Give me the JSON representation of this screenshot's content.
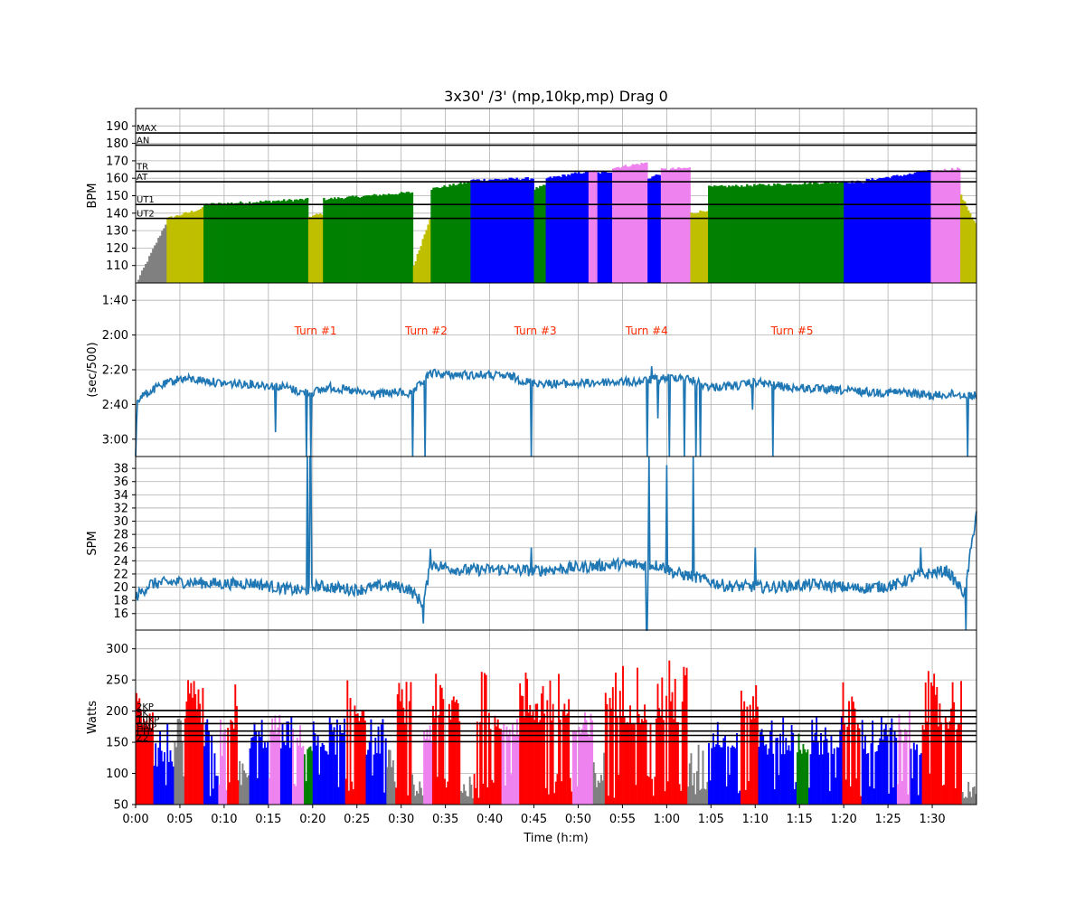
{
  "chart_data": {
    "type": "multi-panel",
    "title": "3x30' /3' (mp,10kp,mp) Drag 0",
    "xlabel": "Time (h:m)",
    "x_range_seconds": [
      0,
      5700
    ],
    "x_ticks": [
      {
        "t": 0,
        "label": "0:00"
      },
      {
        "t": 300,
        "label": "0:05"
      },
      {
        "t": 600,
        "label": "0:10"
      },
      {
        "t": 900,
        "label": "0:15"
      },
      {
        "t": 1200,
        "label": "0:20"
      },
      {
        "t": 1500,
        "label": "0:25"
      },
      {
        "t": 1800,
        "label": "0:30"
      },
      {
        "t": 2100,
        "label": "0:35"
      },
      {
        "t": 2400,
        "label": "0:40"
      },
      {
        "t": 2700,
        "label": "0:45"
      },
      {
        "t": 3000,
        "label": "0:50"
      },
      {
        "t": 3300,
        "label": "0:55"
      },
      {
        "t": 3600,
        "label": "1:00"
      },
      {
        "t": 3900,
        "label": "1:05"
      },
      {
        "t": 4200,
        "label": "1:10"
      },
      {
        "t": 4500,
        "label": "1:15"
      },
      {
        "t": 4800,
        "label": "1:20"
      },
      {
        "t": 5100,
        "label": "1:25"
      },
      {
        "t": 5400,
        "label": "1:30"
      }
    ],
    "colors": {
      "gray": "#808080",
      "yellow": "#bfbf00",
      "green": "#008000",
      "blue": "#0000ff",
      "violet": "#ee82ee",
      "red": "#ff0000",
      "line": "#1f77b4",
      "turn": "#ff2a00"
    },
    "hr_panel": {
      "ylabel": "BPM",
      "ylim": [
        100,
        200
      ],
      "yticks": [
        110,
        120,
        130,
        140,
        150,
        160,
        170,
        180,
        190
      ],
      "zone_lines": [
        {
          "name": "MAX",
          "value": 186
        },
        {
          "name": "AN",
          "value": 179
        },
        {
          "name": "TR",
          "value": 164
        },
        {
          "name": "AT",
          "value": 158
        },
        {
          "name": "UT1",
          "value": 145
        },
        {
          "name": "UT2",
          "value": 137
        }
      ],
      "segments": [
        {
          "t0": 0,
          "t1": 210,
          "start": 100,
          "end": 136,
          "color": "gray"
        },
        {
          "t0": 210,
          "t1": 460,
          "start": 137,
          "end": 143,
          "color": "yellow"
        },
        {
          "t0": 460,
          "t1": 1170,
          "start": 145,
          "end": 148,
          "color": "green"
        },
        {
          "t0": 1170,
          "t1": 1270,
          "start": 138,
          "end": 140,
          "color": "yellow"
        },
        {
          "t0": 1270,
          "t1": 1880,
          "start": 148,
          "end": 152,
          "color": "green"
        },
        {
          "t0": 1880,
          "t1": 2000,
          "start": 110,
          "end": 140,
          "color": "yellow"
        },
        {
          "t0": 2000,
          "t1": 2270,
          "start": 154,
          "end": 158,
          "color": "green"
        },
        {
          "t0": 2270,
          "t1": 2700,
          "start": 159,
          "end": 160,
          "color": "blue"
        },
        {
          "t0": 2700,
          "t1": 2780,
          "start": 154,
          "end": 156,
          "color": "green"
        },
        {
          "t0": 2780,
          "t1": 3070,
          "start": 160,
          "end": 164,
          "color": "blue"
        },
        {
          "t0": 3070,
          "t1": 3130,
          "start": 164,
          "end": 164,
          "color": "violet"
        },
        {
          "t0": 3130,
          "t1": 3230,
          "start": 163,
          "end": 164,
          "color": "blue"
        },
        {
          "t0": 3230,
          "t1": 3470,
          "start": 166,
          "end": 169,
          "color": "violet"
        },
        {
          "t0": 3470,
          "t1": 3560,
          "start": 160,
          "end": 163,
          "color": "blue"
        },
        {
          "t0": 3560,
          "t1": 3760,
          "start": 165,
          "end": 166,
          "color": "violet"
        },
        {
          "t0": 3760,
          "t1": 3880,
          "start": 140,
          "end": 142,
          "color": "yellow"
        },
        {
          "t0": 3880,
          "t1": 4800,
          "start": 155,
          "end": 158,
          "color": "green"
        },
        {
          "t0": 4800,
          "t1": 4950,
          "start": 158,
          "end": 158,
          "color": "blue"
        },
        {
          "t0": 4950,
          "t1": 5300,
          "start": 159,
          "end": 163,
          "color": "blue"
        },
        {
          "t0": 5300,
          "t1": 5390,
          "start": 164,
          "end": 164,
          "color": "blue"
        },
        {
          "t0": 5390,
          "t1": 5490,
          "start": 164,
          "end": 165,
          "color": "violet"
        },
        {
          "t0": 5490,
          "t1": 5590,
          "start": 165,
          "end": 166,
          "color": "violet"
        },
        {
          "t0": 5590,
          "t1": 5700,
          "start": 150,
          "end": 132,
          "color": "yellow"
        }
      ]
    },
    "pace_panel": {
      "ylabel": "(sec/500)",
      "ylim_seconds": [
        190,
        90
      ],
      "yticks": [
        {
          "s": 100,
          "label": "1:40"
        },
        {
          "s": 120,
          "label": "2:00"
        },
        {
          "s": 140,
          "label": "2:20"
        },
        {
          "s": 160,
          "label": "2:40"
        },
        {
          "s": 180,
          "label": "3:00"
        }
      ],
      "annotations": [
        {
          "t": 1220,
          "label": "Turn #1"
        },
        {
          "t": 1970,
          "label": "Turn #2"
        },
        {
          "t": 2710,
          "label": "Turn #3"
        },
        {
          "t": 3465,
          "label": "Turn #4"
        },
        {
          "t": 4450,
          "label": "Turn #5"
        }
      ],
      "baseline": [
        {
          "t": 0,
          "v": 190
        },
        {
          "t": 10,
          "v": 157
        },
        {
          "t": 150,
          "v": 150
        },
        {
          "t": 300,
          "v": 145
        },
        {
          "t": 450,
          "v": 146
        },
        {
          "t": 600,
          "v": 148
        },
        {
          "t": 750,
          "v": 148
        },
        {
          "t": 900,
          "v": 149
        },
        {
          "t": 1020,
          "v": 150
        },
        {
          "t": 1120,
          "v": 153
        },
        {
          "t": 1200,
          "v": 153
        },
        {
          "t": 1320,
          "v": 150
        },
        {
          "t": 1500,
          "v": 153
        },
        {
          "t": 1650,
          "v": 154
        },
        {
          "t": 1780,
          "v": 153
        },
        {
          "t": 1870,
          "v": 154
        },
        {
          "t": 2000,
          "v": 142
        },
        {
          "t": 2150,
          "v": 143
        },
        {
          "t": 2350,
          "v": 143
        },
        {
          "t": 2550,
          "v": 144
        },
        {
          "t": 2650,
          "v": 147
        },
        {
          "t": 2800,
          "v": 148
        },
        {
          "t": 3000,
          "v": 148
        },
        {
          "t": 3200,
          "v": 147
        },
        {
          "t": 3400,
          "v": 147
        },
        {
          "t": 3560,
          "v": 145
        },
        {
          "t": 3700,
          "v": 144
        },
        {
          "t": 3900,
          "v": 150
        },
        {
          "t": 4100,
          "v": 149
        },
        {
          "t": 4200,
          "v": 147
        },
        {
          "t": 4400,
          "v": 150
        },
        {
          "t": 4600,
          "v": 151
        },
        {
          "t": 4800,
          "v": 152
        },
        {
          "t": 5000,
          "v": 153
        },
        {
          "t": 5200,
          "v": 153
        },
        {
          "t": 5400,
          "v": 155
        },
        {
          "t": 5550,
          "v": 154
        },
        {
          "t": 5700,
          "v": 155
        }
      ],
      "spikes": [
        {
          "t": 950,
          "v": 176
        },
        {
          "t": 1160,
          "v": 190
        },
        {
          "t": 1190,
          "v": 190
        },
        {
          "t": 1880,
          "v": 190
        },
        {
          "t": 1960,
          "v": 190
        },
        {
          "t": 2680,
          "v": 190
        },
        {
          "t": 3470,
          "v": 190
        },
        {
          "t": 3500,
          "v": 138
        },
        {
          "t": 3540,
          "v": 168
        },
        {
          "t": 3620,
          "v": 190
        },
        {
          "t": 3720,
          "v": 190
        },
        {
          "t": 3800,
          "v": 190
        },
        {
          "t": 3830,
          "v": 190
        },
        {
          "t": 4180,
          "v": 163
        },
        {
          "t": 4320,
          "v": 190
        },
        {
          "t": 5640,
          "v": 190
        }
      ]
    },
    "spm_panel": {
      "ylabel": "SPM",
      "ylim": [
        13.5,
        39.8
      ],
      "yticks": [
        16,
        18,
        20,
        22,
        24,
        26,
        28,
        30,
        32,
        34,
        36,
        38
      ],
      "baseline": [
        {
          "t": 0,
          "v": 18.5
        },
        {
          "t": 100,
          "v": 20.5
        },
        {
          "t": 300,
          "v": 20.8
        },
        {
          "t": 600,
          "v": 20.5
        },
        {
          "t": 800,
          "v": 20.6
        },
        {
          "t": 1000,
          "v": 19.8
        },
        {
          "t": 1150,
          "v": 19.4
        },
        {
          "t": 1220,
          "v": 20.2
        },
        {
          "t": 1500,
          "v": 19.6
        },
        {
          "t": 1700,
          "v": 20.3
        },
        {
          "t": 1850,
          "v": 19.8
        },
        {
          "t": 1950,
          "v": 17.5
        },
        {
          "t": 2000,
          "v": 23.5
        },
        {
          "t": 2200,
          "v": 22.6
        },
        {
          "t": 2500,
          "v": 22.7
        },
        {
          "t": 2700,
          "v": 22.5
        },
        {
          "t": 3000,
          "v": 23.0
        },
        {
          "t": 3300,
          "v": 23.5
        },
        {
          "t": 3560,
          "v": 23.3
        },
        {
          "t": 3650,
          "v": 22.2
        },
        {
          "t": 3800,
          "v": 21.5
        },
        {
          "t": 4000,
          "v": 20.2
        },
        {
          "t": 4300,
          "v": 20.0
        },
        {
          "t": 4600,
          "v": 20.4
        },
        {
          "t": 4900,
          "v": 19.8
        },
        {
          "t": 5150,
          "v": 20.3
        },
        {
          "t": 5300,
          "v": 21.8
        },
        {
          "t": 5500,
          "v": 22.5
        },
        {
          "t": 5620,
          "v": 19.0
        },
        {
          "t": 5700,
          "v": 31.5
        }
      ],
      "spikes": [
        {
          "t": 1165,
          "v": 39.8
        },
        {
          "t": 1185,
          "v": 39.8
        },
        {
          "t": 1950,
          "v": 14.5
        },
        {
          "t": 2000,
          "v": 25.8
        },
        {
          "t": 2680,
          "v": 14.6
        },
        {
          "t": 2680,
          "v": 26.0
        },
        {
          "t": 3465,
          "v": 13.5
        },
        {
          "t": 3480,
          "v": 39.8
        },
        {
          "t": 3600,
          "v": 38.5
        },
        {
          "t": 3780,
          "v": 39.8
        },
        {
          "t": 4200,
          "v": 26.0
        },
        {
          "t": 5320,
          "v": 26.0
        },
        {
          "t": 5630,
          "v": 13.5
        }
      ]
    },
    "power_panel": {
      "ylabel": "Watts",
      "ylim": [
        50,
        330
      ],
      "yticks": [
        50,
        100,
        150,
        200,
        250,
        300
      ],
      "zone_lines": [
        {
          "name": "2KP",
          "value": 201
        },
        {
          "name": "5K",
          "value": 191
        },
        {
          "name": "10KP",
          "value": 180
        },
        {
          "name": "HMP",
          "value": 168
        },
        {
          "name": "FTP",
          "value": 161
        },
        {
          "name": "Z2",
          "value": 151
        }
      ],
      "zone_label_text": [
        "2KP",
        "5K",
        "10KP",
        "HMP",
        "FTP",
        "Z2"
      ],
      "bursts": [
        {
          "t0": 0,
          "t1": 120,
          "base": 170,
          "peak": 250,
          "color": "red"
        },
        {
          "t0": 120,
          "t1": 260,
          "base": 110,
          "peak": 190,
          "color": "blue"
        },
        {
          "t0": 260,
          "t1": 330,
          "base": 120,
          "peak": 190,
          "color": "gray"
        },
        {
          "t0": 330,
          "t1": 460,
          "base": 180,
          "peak": 250,
          "color": "red"
        },
        {
          "t0": 460,
          "t1": 560,
          "base": 110,
          "peak": 190,
          "color": "blue"
        },
        {
          "t0": 560,
          "t1": 620,
          "base": 110,
          "peak": 190,
          "color": "violet"
        },
        {
          "t0": 620,
          "t1": 700,
          "base": 170,
          "peak": 250,
          "color": "red"
        },
        {
          "t0": 700,
          "t1": 770,
          "base": 80,
          "peak": 130,
          "color": "gray"
        },
        {
          "t0": 770,
          "t1": 900,
          "base": 140,
          "peak": 195,
          "color": "blue"
        },
        {
          "t0": 900,
          "t1": 980,
          "base": 160,
          "peak": 195,
          "color": "violet"
        },
        {
          "t0": 980,
          "t1": 1060,
          "base": 140,
          "peak": 195,
          "color": "blue"
        },
        {
          "t0": 1060,
          "t1": 1140,
          "base": 140,
          "peak": 180,
          "color": "violet"
        },
        {
          "t0": 1140,
          "t1": 1200,
          "base": 130,
          "peak": 175,
          "color": "green"
        },
        {
          "t0": 1200,
          "t1": 1420,
          "base": 130,
          "peak": 195,
          "color": "blue"
        },
        {
          "t0": 1420,
          "t1": 1560,
          "base": 180,
          "peak": 250,
          "color": "red"
        },
        {
          "t0": 1560,
          "t1": 1700,
          "base": 130,
          "peak": 190,
          "color": "blue"
        },
        {
          "t0": 1700,
          "t1": 1760,
          "base": 110,
          "peak": 140,
          "color": "gray"
        },
        {
          "t0": 1760,
          "t1": 1870,
          "base": 180,
          "peak": 250,
          "color": "red"
        },
        {
          "t0": 1870,
          "t1": 1950,
          "base": 60,
          "peak": 95,
          "color": "gray"
        },
        {
          "t0": 1950,
          "t1": 2010,
          "base": 150,
          "peak": 200,
          "color": "violet"
        },
        {
          "t0": 2010,
          "t1": 2200,
          "base": 180,
          "peak": 260,
          "color": "red"
        },
        {
          "t0": 2200,
          "t1": 2290,
          "base": 60,
          "peak": 110,
          "color": "gray"
        },
        {
          "t0": 2290,
          "t1": 2480,
          "base": 170,
          "peak": 270,
          "color": "red"
        },
        {
          "t0": 2480,
          "t1": 2600,
          "base": 160,
          "peak": 210,
          "color": "violet"
        },
        {
          "t0": 2600,
          "t1": 2960,
          "base": 180,
          "peak": 270,
          "color": "red"
        },
        {
          "t0": 2960,
          "t1": 3100,
          "base": 150,
          "peak": 200,
          "color": "violet"
        },
        {
          "t0": 3100,
          "t1": 3180,
          "base": 80,
          "peak": 140,
          "color": "gray"
        },
        {
          "t0": 3180,
          "t1": 3740,
          "base": 180,
          "peak": 285,
          "color": "red"
        },
        {
          "t0": 3740,
          "t1": 3880,
          "base": 70,
          "peak": 150,
          "color": "gray"
        },
        {
          "t0": 3880,
          "t1": 4100,
          "base": 140,
          "peak": 195,
          "color": "blue"
        },
        {
          "t0": 4100,
          "t1": 4220,
          "base": 180,
          "peak": 300,
          "color": "red"
        },
        {
          "t0": 4220,
          "t1": 4480,
          "base": 130,
          "peak": 190,
          "color": "blue"
        },
        {
          "t0": 4480,
          "t1": 4560,
          "base": 130,
          "peak": 180,
          "color": "green"
        },
        {
          "t0": 4560,
          "t1": 4790,
          "base": 130,
          "peak": 195,
          "color": "blue"
        },
        {
          "t0": 4790,
          "t1": 4920,
          "base": 170,
          "peak": 255,
          "color": "red"
        },
        {
          "t0": 4920,
          "t1": 5160,
          "base": 130,
          "peak": 195,
          "color": "blue"
        },
        {
          "t0": 5160,
          "t1": 5250,
          "base": 150,
          "peak": 200,
          "color": "violet"
        },
        {
          "t0": 5250,
          "t1": 5330,
          "base": 130,
          "peak": 190,
          "color": "blue"
        },
        {
          "t0": 5330,
          "t1": 5600,
          "base": 170,
          "peak": 265,
          "color": "red"
        },
        {
          "t0": 5600,
          "t1": 5700,
          "base": 60,
          "peak": 80,
          "color": "gray"
        }
      ]
    }
  }
}
